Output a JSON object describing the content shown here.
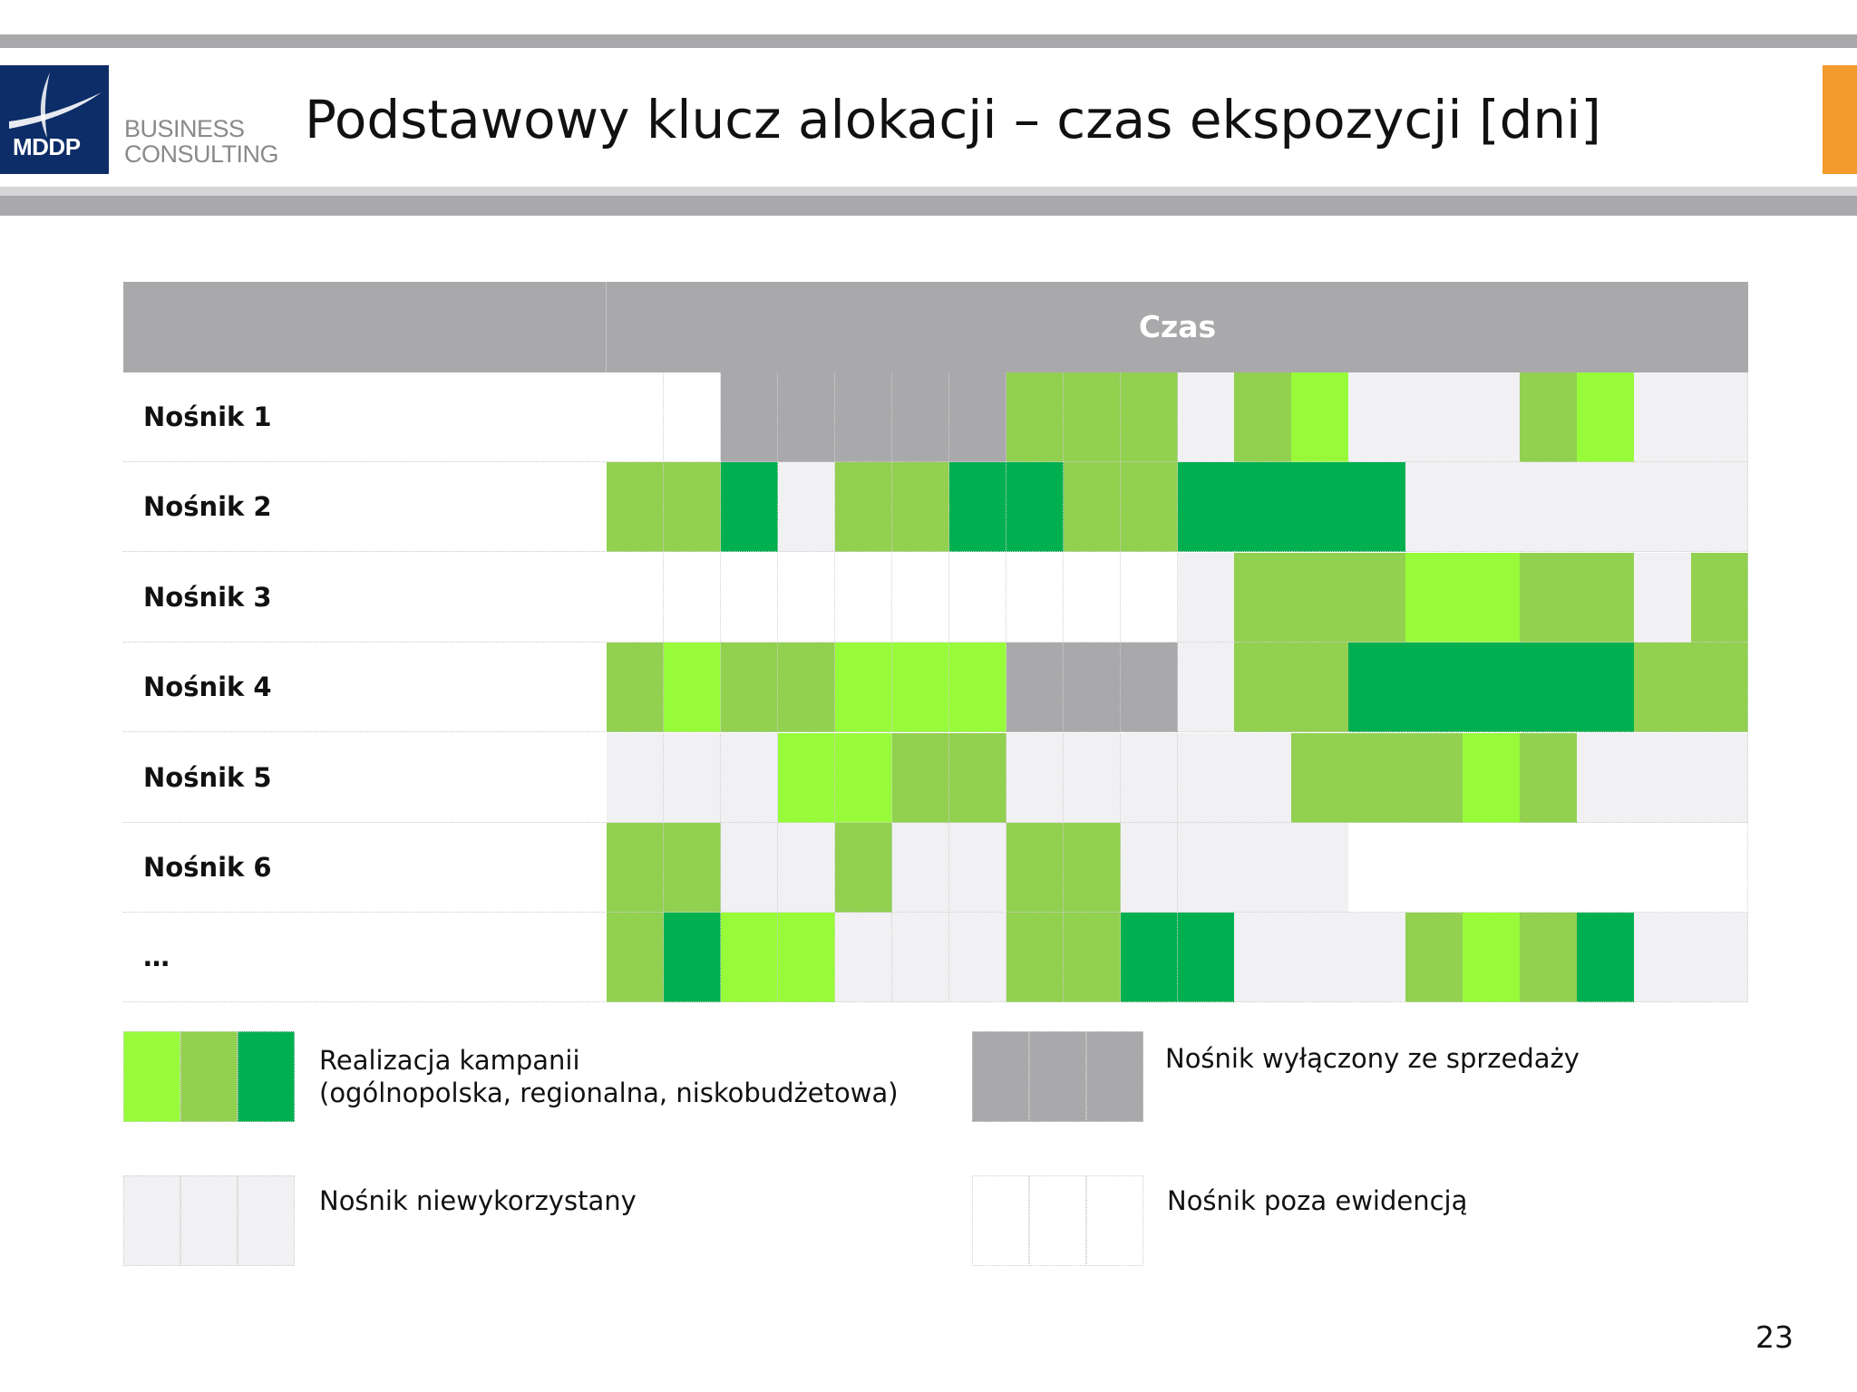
{
  "header": {
    "title": "Podstawowy klucz alokacji – czas ekspozycji [dni]",
    "logo_text": "MDDP",
    "logo_sub_line1": "BUSINESS",
    "logo_sub_line2": "CONSULTING"
  },
  "colors": {
    "brand_navy": "#0d2d68",
    "accent_orange": "#f39a2c",
    "header_gray": "#a9a9ab"
  },
  "chart_data": {
    "type": "heatmap",
    "title": "",
    "xlabel": "Czas",
    "ylabel": "",
    "rows": [
      "Nośnik 1",
      "Nośnik 2",
      "Nośnik 3",
      "Nośnik 4",
      "Nośnik 5",
      "Nośnik 6",
      "…"
    ],
    "columns": 20,
    "categories": {
      "L": {
        "color": "#98fb3a",
        "meaning": "Realizacja kampanii"
      },
      "M": {
        "color": "#92d050",
        "meaning": "Realizacja kampanii"
      },
      "D": {
        "color": "#00b050",
        "meaning": "Realizacja kampanii"
      },
      "G": {
        "color": "#a9a9ab",
        "meaning": "Nośnik wyłączony ze sprzedaży"
      },
      "U": {
        "color": "#f1f1f3",
        "meaning": "Nośnik niewykorzystany"
      },
      "W": {
        "color": "#ffffff",
        "meaning": "Nośnik poza ewidencją"
      }
    },
    "values": [
      [
        "W",
        "W",
        "G",
        "G",
        "G",
        "G",
        "G",
        "M",
        "M",
        "M",
        "U",
        "M",
        "L",
        "U",
        "U",
        "U",
        "M",
        "L",
        "U",
        "U"
      ],
      [
        "M",
        "M",
        "D",
        "U",
        "M",
        "M",
        "D",
        "D",
        "M",
        "M",
        "D",
        "D",
        "D",
        "D",
        "U",
        "U",
        "U",
        "U",
        "U",
        "U"
      ],
      [
        "W",
        "W",
        "W",
        "W",
        "W",
        "W",
        "W",
        "W",
        "W",
        "W",
        "U",
        "M",
        "M",
        "M",
        "L",
        "L",
        "M",
        "M",
        "U",
        "M"
      ],
      [
        "M",
        "L",
        "M",
        "M",
        "L",
        "L",
        "L",
        "G",
        "G",
        "G",
        "U",
        "M",
        "M",
        "D",
        "D",
        "D",
        "D",
        "D",
        "M",
        "M"
      ],
      [
        "U",
        "U",
        "U",
        "L",
        "L",
        "M",
        "M",
        "U",
        "U",
        "U",
        "U",
        "U",
        "M",
        "M",
        "M",
        "L",
        "M",
        "U",
        "U",
        "U"
      ],
      [
        "M",
        "M",
        "U",
        "U",
        "M",
        "U",
        "U",
        "M",
        "M",
        "U",
        "U",
        "U",
        "U",
        "W",
        "W",
        "W",
        "W",
        "W",
        "W",
        "W"
      ],
      [
        "M",
        "D",
        "L",
        "L",
        "U",
        "U",
        "U",
        "M",
        "M",
        "D",
        "D",
        "U",
        "U",
        "U",
        "M",
        "L",
        "M",
        "D",
        "U",
        "U"
      ]
    ]
  },
  "legend": [
    {
      "swatches": [
        "L",
        "M",
        "D"
      ],
      "line1": "Realizacja kampanii",
      "line2": "(ogólnopolska, regionalna, niskobudżetowa)"
    },
    {
      "swatches": [
        "G",
        "G",
        "G"
      ],
      "line1": "Nośnik wyłączony ze sprzedaży",
      "line2": ""
    },
    {
      "swatches": [
        "U",
        "U",
        "U"
      ],
      "line1": "Nośnik niewykorzystany",
      "line2": ""
    },
    {
      "swatches": [
        "W",
        "W",
        "W"
      ],
      "line1": "Nośnik poza ewidencją",
      "line2": ""
    }
  ],
  "page_number": "23"
}
